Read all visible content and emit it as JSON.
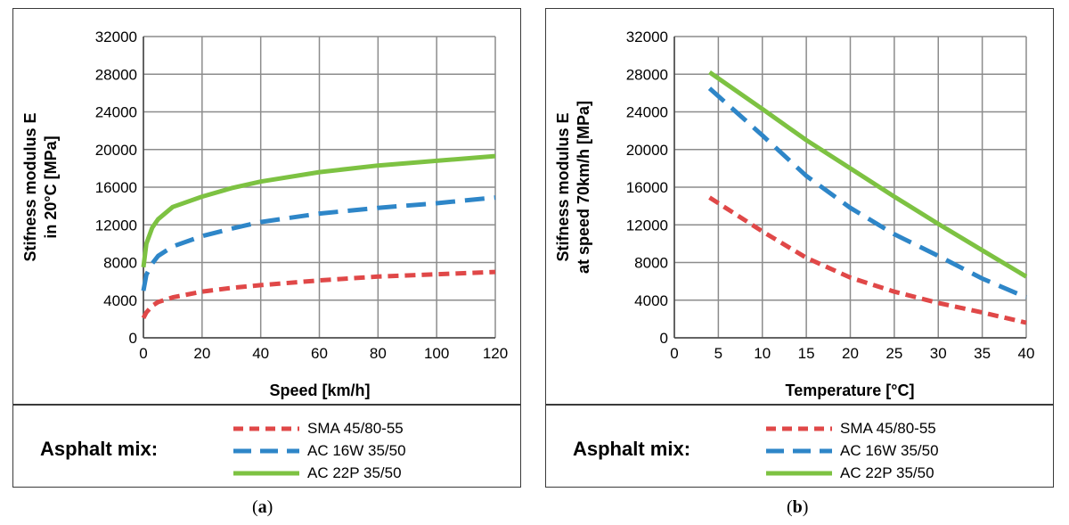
{
  "chart_data": [
    {
      "type": "line",
      "id": "a",
      "xlabel": "Speed [km/h]",
      "ylabel_lines": [
        "Stifness modulus E",
        "in 20°C [MPa]"
      ],
      "xlim": [
        0,
        120
      ],
      "ylim": [
        0,
        32000
      ],
      "x_ticks": [
        0,
        20,
        40,
        60,
        80,
        100,
        120
      ],
      "y_ticks": [
        0,
        4000,
        8000,
        12000,
        16000,
        20000,
        24000,
        28000,
        32000
      ],
      "grid": true,
      "legend_title": "Asphalt mix:",
      "series": [
        {
          "name": "SMA 45/80-55",
          "color": "#e04848",
          "dash": "dense",
          "x": [
            0,
            1,
            3,
            5,
            10,
            20,
            30,
            40,
            60,
            80,
            100,
            120
          ],
          "y": [
            2100,
            2700,
            3400,
            3800,
            4300,
            4900,
            5300,
            5600,
            6100,
            6500,
            6750,
            7000
          ]
        },
        {
          "name": "AC 16W 35/50",
          "color": "#2e86c8",
          "dash": "long",
          "x": [
            0,
            1,
            3,
            5,
            10,
            20,
            30,
            40,
            60,
            80,
            100,
            120
          ],
          "y": [
            5000,
            6700,
            7900,
            8700,
            9700,
            10800,
            11600,
            12300,
            13200,
            13800,
            14300,
            14900
          ]
        },
        {
          "name": "AC 22P 35/50",
          "color": "#7dc242",
          "dash": "solid",
          "x": [
            0,
            1,
            3,
            5,
            10,
            20,
            30,
            40,
            60,
            80,
            100,
            120
          ],
          "y": [
            7500,
            10000,
            11700,
            12600,
            13900,
            15000,
            15900,
            16600,
            17600,
            18300,
            18800,
            19300
          ]
        }
      ]
    },
    {
      "type": "line",
      "id": "b",
      "xlabel": "Temperature [°C]",
      "ylabel_lines": [
        "Stifness modulus E",
        "at speed  70km/h [MPa]"
      ],
      "xlim": [
        0,
        40
      ],
      "ylim": [
        0,
        32000
      ],
      "x_ticks": [
        0,
        5,
        10,
        15,
        20,
        25,
        30,
        35,
        40
      ],
      "y_ticks": [
        0,
        4000,
        8000,
        12000,
        16000,
        20000,
        24000,
        28000,
        32000
      ],
      "grid": true,
      "legend_title": "Asphalt mix:",
      "series": [
        {
          "name": "SMA 45/80-55",
          "color": "#e04848",
          "dash": "dense",
          "x": [
            4,
            10,
            15,
            20,
            25,
            30,
            35,
            40
          ],
          "y": [
            14900,
            11300,
            8500,
            6400,
            4900,
            3700,
            2700,
            1600
          ]
        },
        {
          "name": "AC 16W 35/50",
          "color": "#2e86c8",
          "dash": "long",
          "x": [
            4,
            10,
            15,
            20,
            25,
            30,
            35,
            40
          ],
          "y": [
            26500,
            21500,
            17200,
            13800,
            11000,
            8700,
            6300,
            4300
          ]
        },
        {
          "name": "AC 22P 35/50",
          "color": "#7dc242",
          "dash": "solid",
          "x": [
            4,
            10,
            15,
            20,
            25,
            30,
            35,
            40
          ],
          "y": [
            28200,
            24300,
            21000,
            18000,
            15000,
            12100,
            9300,
            6500
          ]
        }
      ]
    }
  ],
  "captions": [
    {
      "open": "(",
      "letter": "a",
      "close": ")"
    },
    {
      "open": "(",
      "letter": "b",
      "close": ")"
    }
  ]
}
